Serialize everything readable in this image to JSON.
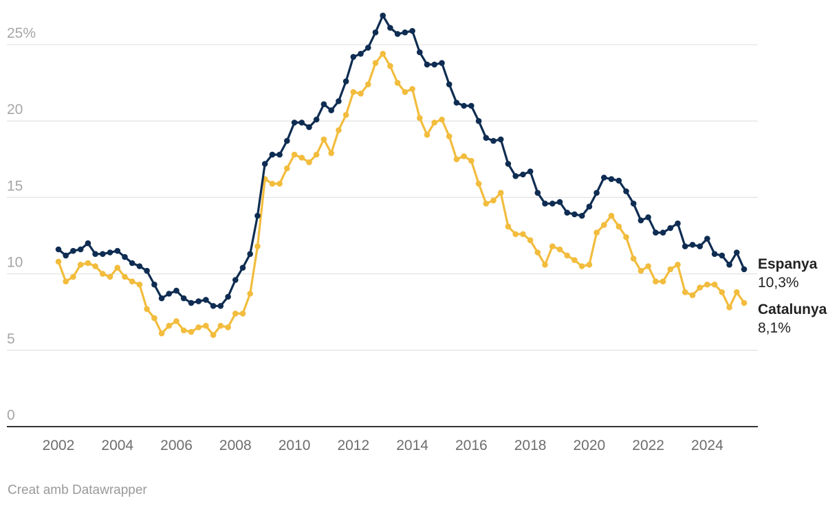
{
  "chart_data": {
    "type": "line",
    "y_unit": "%",
    "ylim": [
      0,
      25
    ],
    "yticks": [
      0,
      5,
      10,
      15,
      20,
      25
    ],
    "ytick_labels": [
      "0",
      "5",
      "10",
      "15",
      "20",
      "25%"
    ],
    "xlim": [
      2002,
      2025.25
    ],
    "xticks": [
      2002,
      2004,
      2006,
      2008,
      2010,
      2012,
      2014,
      2016,
      2018,
      2020,
      2022,
      2024
    ],
    "xtick_labels": [
      "2002",
      "2004",
      "2006",
      "2008",
      "2010",
      "2012",
      "2014",
      "2016",
      "2018",
      "2020",
      "2022",
      "2024"
    ],
    "grid": true,
    "markers": true,
    "series": [
      {
        "name": "Espanya",
        "last_label": "10,3%",
        "color": "#0f2d52",
        "x": [
          2002,
          2002.25,
          2002.5,
          2002.75,
          2003,
          2003.25,
          2003.5,
          2003.75,
          2004,
          2004.25,
          2004.5,
          2004.75,
          2005,
          2005.25,
          2005.5,
          2005.75,
          2006,
          2006.25,
          2006.5,
          2006.75,
          2007,
          2007.25,
          2007.5,
          2007.75,
          2008,
          2008.25,
          2008.5,
          2008.75,
          2009,
          2009.25,
          2009.5,
          2009.75,
          2010,
          2010.25,
          2010.5,
          2010.75,
          2011,
          2011.25,
          2011.5,
          2011.75,
          2012,
          2012.25,
          2012.5,
          2012.75,
          2013,
          2013.25,
          2013.5,
          2013.75,
          2014,
          2014.25,
          2014.5,
          2014.75,
          2015,
          2015.25,
          2015.5,
          2015.75,
          2016,
          2016.25,
          2016.5,
          2016.75,
          2017,
          2017.25,
          2017.5,
          2017.75,
          2018,
          2018.25,
          2018.5,
          2018.75,
          2019,
          2019.25,
          2019.5,
          2019.75,
          2020,
          2020.25,
          2020.5,
          2020.75,
          2021,
          2021.25,
          2021.5,
          2021.75,
          2022,
          2022.25,
          2022.5,
          2022.75,
          2023,
          2023.25,
          2023.5,
          2023.75,
          2024,
          2024.25,
          2024.5,
          2024.75,
          2025,
          2025.25
        ],
        "values": [
          11.6,
          11.2,
          11.5,
          11.6,
          12.0,
          11.3,
          11.3,
          11.4,
          11.5,
          11.1,
          10.7,
          10.5,
          10.2,
          9.3,
          8.4,
          8.7,
          8.9,
          8.4,
          8.1,
          8.2,
          8.3,
          7.9,
          7.9,
          8.5,
          9.6,
          10.4,
          11.3,
          13.8,
          17.2,
          17.8,
          17.8,
          18.7,
          19.9,
          19.9,
          19.6,
          20.1,
          21.1,
          20.7,
          21.3,
          22.6,
          24.2,
          24.4,
          24.8,
          25.8,
          26.9,
          26.1,
          25.7,
          25.8,
          25.9,
          24.5,
          23.7,
          23.7,
          23.8,
          22.4,
          21.2,
          21.0,
          21.0,
          20.0,
          18.9,
          18.7,
          18.8,
          17.2,
          16.4,
          16.5,
          16.7,
          15.3,
          14.6,
          14.6,
          14.7,
          14.0,
          13.9,
          13.8,
          14.4,
          15.3,
          16.3,
          16.2,
          16.1,
          15.4,
          14.6,
          13.5,
          13.7,
          12.7,
          12.7,
          13.0,
          13.3,
          11.8,
          11.9,
          11.8,
          12.3,
          11.3,
          11.2,
          10.6,
          11.4,
          10.3
        ]
      },
      {
        "name": "Catalunya",
        "last_label": "8,1%",
        "color": "#f2bc3d",
        "x": [
          2002,
          2002.25,
          2002.5,
          2002.75,
          2003,
          2003.25,
          2003.5,
          2003.75,
          2004,
          2004.25,
          2004.5,
          2004.75,
          2005,
          2005.25,
          2005.5,
          2005.75,
          2006,
          2006.25,
          2006.5,
          2006.75,
          2007,
          2007.25,
          2007.5,
          2007.75,
          2008,
          2008.25,
          2008.5,
          2008.75,
          2009,
          2009.25,
          2009.5,
          2009.75,
          2010,
          2010.25,
          2010.5,
          2010.75,
          2011,
          2011.25,
          2011.5,
          2011.75,
          2012,
          2012.25,
          2012.5,
          2012.75,
          2013,
          2013.25,
          2013.5,
          2013.75,
          2014,
          2014.25,
          2014.5,
          2014.75,
          2015,
          2015.25,
          2015.5,
          2015.75,
          2016,
          2016.25,
          2016.5,
          2016.75,
          2017,
          2017.25,
          2017.5,
          2017.75,
          2018,
          2018.25,
          2018.5,
          2018.75,
          2019,
          2019.25,
          2019.5,
          2019.75,
          2020,
          2020.25,
          2020.5,
          2020.75,
          2021,
          2021.25,
          2021.5,
          2021.75,
          2022,
          2022.25,
          2022.5,
          2022.75,
          2023,
          2023.25,
          2023.5,
          2023.75,
          2024,
          2024.25,
          2024.5,
          2024.75,
          2025,
          2025.25
        ],
        "values": [
          10.8,
          9.5,
          9.8,
          10.6,
          10.7,
          10.5,
          10.0,
          9.8,
          10.4,
          9.8,
          9.5,
          9.3,
          7.7,
          7.1,
          6.1,
          6.6,
          6.9,
          6.3,
          6.2,
          6.5,
          6.6,
          6.0,
          6.6,
          6.5,
          7.4,
          7.4,
          8.7,
          11.8,
          16.2,
          15.9,
          15.9,
          16.9,
          17.8,
          17.6,
          17.3,
          17.8,
          18.8,
          17.9,
          19.4,
          20.4,
          21.9,
          21.8,
          22.4,
          23.8,
          24.4,
          23.6,
          22.5,
          21.9,
          22.1,
          20.2,
          19.1,
          19.9,
          20.1,
          19.0,
          17.5,
          17.7,
          17.4,
          15.9,
          14.6,
          14.8,
          15.3,
          13.1,
          12.6,
          12.6,
          12.2,
          11.4,
          10.6,
          11.8,
          11.6,
          11.2,
          10.9,
          10.5,
          10.6,
          12.7,
          13.2,
          13.8,
          13.1,
          12.4,
          11.0,
          10.2,
          10.5,
          9.5,
          9.5,
          10.3,
          10.6,
          8.8,
          8.6,
          9.1,
          9.3,
          9.3,
          8.8,
          7.8,
          8.8,
          8.1
        ]
      }
    ]
  },
  "footer": {
    "credit": "Creat amb Datawrapper"
  }
}
